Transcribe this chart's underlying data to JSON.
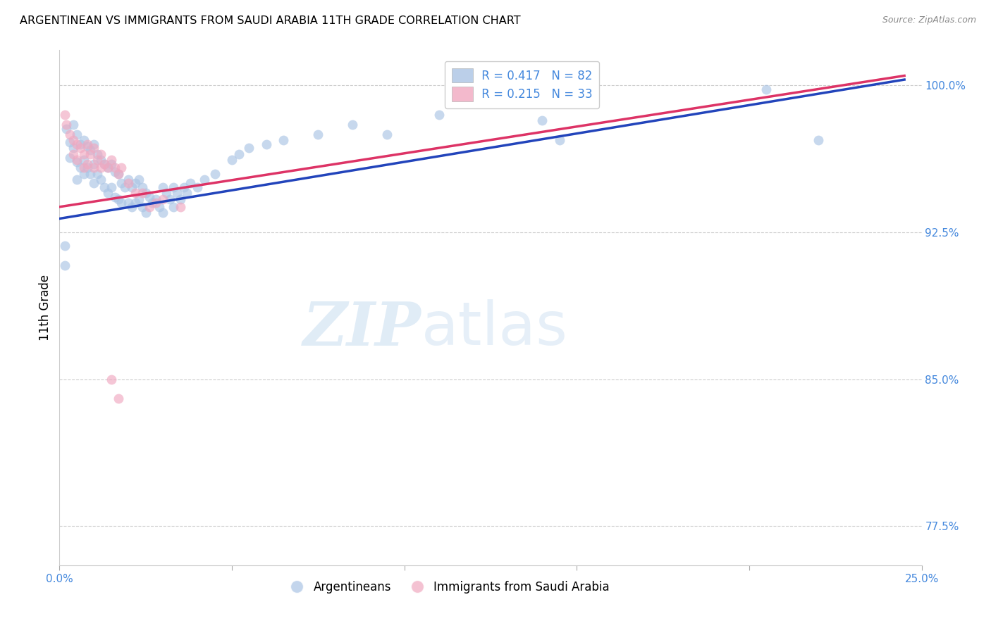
{
  "title": "ARGENTINEAN VS IMMIGRANTS FROM SAUDI ARABIA 11TH GRADE CORRELATION CHART",
  "source": "Source: ZipAtlas.com",
  "ylabel": "11th Grade",
  "legend_blue_r": "R = 0.417",
  "legend_blue_n": "N = 82",
  "legend_pink_r": "R = 0.215",
  "legend_pink_n": "N = 33",
  "legend_label_blue": "Argentineans",
  "legend_label_pink": "Immigrants from Saudi Arabia",
  "blue_color": "#aac4e4",
  "blue_line_color": "#2244bb",
  "pink_color": "#f0a8c0",
  "pink_line_color": "#dd3366",
  "watermark_zip": "ZIP",
  "watermark_atlas": "atlas",
  "xlim": [
    0.0,
    25.0
  ],
  "ylim": [
    0.755,
    1.018
  ],
  "x_tick_positions": [
    0,
    5,
    10,
    15,
    20,
    25
  ],
  "x_tick_labels": [
    "0.0%",
    "",
    "",
    "",
    "",
    "25.0%"
  ],
  "y_tick_positions": [
    0.775,
    0.85,
    0.925,
    1.0
  ],
  "y_tick_labels": [
    "77.5%",
    "85.0%",
    "92.5%",
    "100.0%"
  ],
  "grid_color": "#cccccc",
  "background_color": "#ffffff",
  "marker_size": 100,
  "blue_trend_x": [
    0.0,
    24.5
  ],
  "blue_trend_y": [
    0.932,
    1.003
  ],
  "pink_trend_x": [
    0.0,
    24.5
  ],
  "pink_trend_y": [
    0.938,
    1.005
  ],
  "blue_scatter_x": [
    0.2,
    0.3,
    0.3,
    0.4,
    0.4,
    0.5,
    0.5,
    0.5,
    0.6,
    0.6,
    0.7,
    0.7,
    0.7,
    0.8,
    0.8,
    0.9,
    0.9,
    1.0,
    1.0,
    1.0,
    1.1,
    1.1,
    1.2,
    1.2,
    1.3,
    1.3,
    1.4,
    1.4,
    1.5,
    1.5,
    1.6,
    1.6,
    1.7,
    1.7,
    1.8,
    1.8,
    1.9,
    2.0,
    2.0,
    2.1,
    2.1,
    2.2,
    2.2,
    2.3,
    2.3,
    2.4,
    2.4,
    2.5,
    2.5,
    2.6,
    2.7,
    2.8,
    2.9,
    3.0,
    3.0,
    3.1,
    3.2,
    3.3,
    3.3,
    3.4,
    3.5,
    3.6,
    3.7,
    3.8,
    4.0,
    4.2,
    4.5,
    5.0,
    5.2,
    5.5,
    6.0,
    6.5,
    7.5,
    8.5,
    9.5,
    11.0,
    14.0,
    14.5,
    20.5,
    22.0,
    0.15,
    0.15
  ],
  "blue_scatter_y": [
    0.978,
    0.971,
    0.963,
    0.98,
    0.968,
    0.975,
    0.961,
    0.952,
    0.97,
    0.958,
    0.972,
    0.962,
    0.955,
    0.969,
    0.958,
    0.967,
    0.955,
    0.97,
    0.96,
    0.95,
    0.965,
    0.955,
    0.962,
    0.952,
    0.96,
    0.948,
    0.958,
    0.945,
    0.96,
    0.948,
    0.956,
    0.943,
    0.955,
    0.942,
    0.95,
    0.94,
    0.948,
    0.952,
    0.94,
    0.948,
    0.938,
    0.95,
    0.94,
    0.952,
    0.942,
    0.948,
    0.938,
    0.945,
    0.935,
    0.943,
    0.94,
    0.942,
    0.938,
    0.948,
    0.935,
    0.945,
    0.942,
    0.948,
    0.938,
    0.945,
    0.942,
    0.948,
    0.945,
    0.95,
    0.948,
    0.952,
    0.955,
    0.962,
    0.965,
    0.968,
    0.97,
    0.972,
    0.975,
    0.98,
    0.975,
    0.985,
    0.982,
    0.972,
    0.998,
    0.972,
    0.918,
    0.908
  ],
  "pink_scatter_x": [
    0.2,
    0.3,
    0.4,
    0.4,
    0.5,
    0.5,
    0.6,
    0.7,
    0.7,
    0.8,
    0.8,
    0.9,
    1.0,
    1.0,
    1.1,
    1.2,
    1.2,
    1.3,
    1.4,
    1.5,
    1.6,
    1.7,
    1.8,
    2.0,
    2.2,
    2.4,
    2.6,
    2.8,
    3.0,
    3.5,
    0.15,
    1.5,
    1.7
  ],
  "pink_scatter_y": [
    0.98,
    0.975,
    0.972,
    0.965,
    0.97,
    0.962,
    0.968,
    0.965,
    0.958,
    0.97,
    0.96,
    0.965,
    0.968,
    0.958,
    0.962,
    0.965,
    0.958,
    0.96,
    0.958,
    0.962,
    0.958,
    0.955,
    0.958,
    0.95,
    0.945,
    0.945,
    0.938,
    0.94,
    0.942,
    0.938,
    0.985,
    0.85,
    0.84
  ]
}
